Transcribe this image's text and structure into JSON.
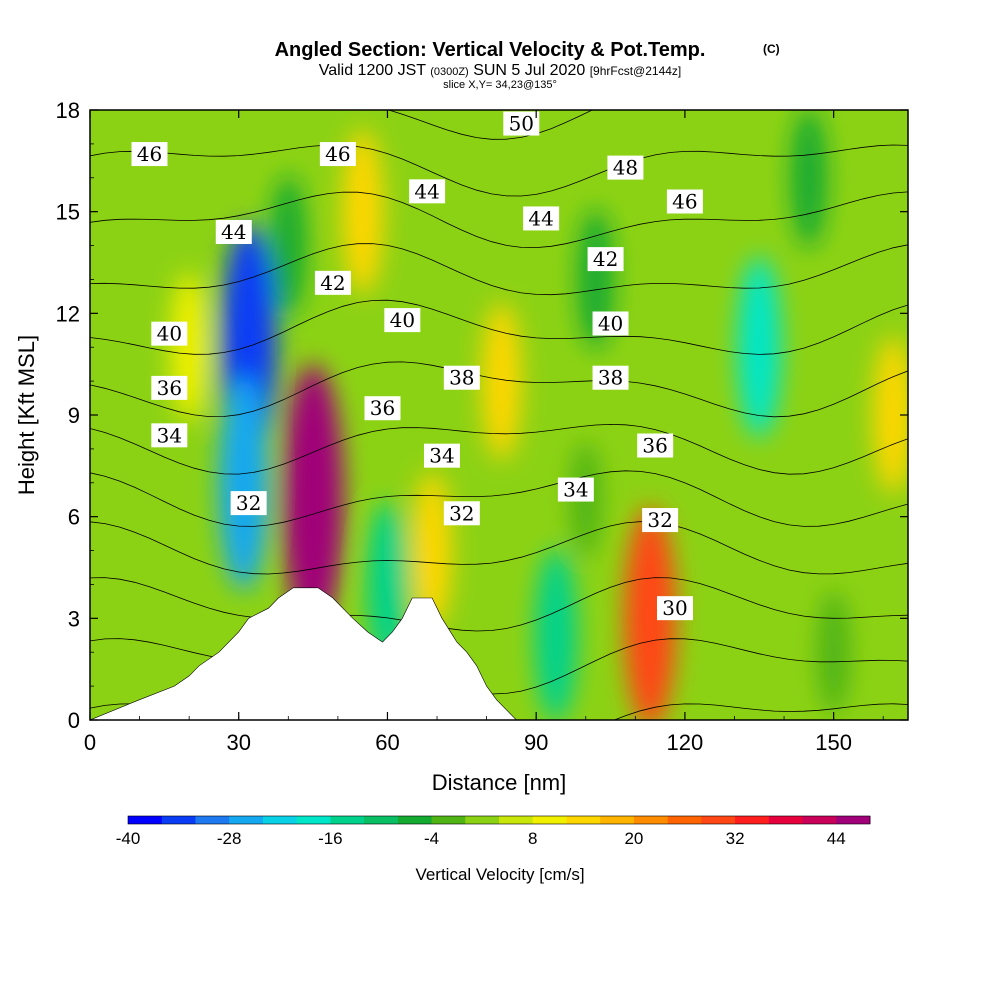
{
  "title": {
    "main": "Angled Section: Vertical Velocity & Pot.Temp.",
    "copyright": "(C)",
    "valid_prefix": "Valid 1200 JST",
    "valid_utc": "(0300Z)",
    "valid_date": "SUN 5 Jul 2020",
    "forecast": "[9hrFcst@2144z]",
    "slice": "slice X,Y= 34,23@135°"
  },
  "chart_data": {
    "type": "heatmap",
    "xlabel": "Distance [nm]",
    "ylabel": "Height [Kft MSL]",
    "xlim": [
      0,
      165
    ],
    "ylim": [
      0,
      18
    ],
    "x_ticks": [
      "0",
      "30",
      "60",
      "90",
      "120",
      "150"
    ],
    "y_ticks": [
      "0",
      "3",
      "6",
      "9",
      "12",
      "15",
      "18"
    ],
    "colorbar": {
      "label": "Vertical Velocity [cm/s]",
      "min": -40,
      "max": 48,
      "step": 4,
      "tick_labels": [
        "-40",
        "-28",
        "-16",
        "-4",
        "8",
        "20",
        "32",
        "44"
      ],
      "colors": [
        "#0000ff",
        "#0a3cf5",
        "#1e78f0",
        "#14a8f0",
        "#0ad2e6",
        "#00e6c8",
        "#00d28c",
        "#0abe64",
        "#14aa32",
        "#50b414",
        "#8cd214",
        "#c8e60a",
        "#f0f000",
        "#ffd700",
        "#ffb400",
        "#ff8c00",
        "#ff6400",
        "#ff4614",
        "#ff1e1e",
        "#e6003c",
        "#c8005a",
        "#a00078"
      ]
    },
    "velocity_features": [
      {
        "x": 20,
        "y": 11,
        "value": 10
      },
      {
        "x": 32,
        "y": 11,
        "value": -34
      },
      {
        "x": 31,
        "y": 7,
        "value": -26
      },
      {
        "x": 45,
        "y": 6.5,
        "value": 46
      },
      {
        "x": 40,
        "y": 14,
        "value": -8
      },
      {
        "x": 55,
        "y": 15,
        "value": 14
      },
      {
        "x": 60,
        "y": 4,
        "value": -14
      },
      {
        "x": 69,
        "y": 5,
        "value": 12
      },
      {
        "x": 83,
        "y": 10,
        "value": 12
      },
      {
        "x": 94,
        "y": 2.5,
        "value": -16
      },
      {
        "x": 100,
        "y": 6.5,
        "value": -2
      },
      {
        "x": 113,
        "y": 3,
        "value": 28
      },
      {
        "x": 102,
        "y": 13,
        "value": -8
      },
      {
        "x": 135,
        "y": 11,
        "value": -18
      },
      {
        "x": 145,
        "y": 16,
        "value": -8
      },
      {
        "x": 162,
        "y": 9,
        "value": 12
      },
      {
        "x": 150,
        "y": 2,
        "value": -4
      }
    ],
    "theta_labels": [
      {
        "text": "46",
        "x": 12,
        "y": 16.7
      },
      {
        "text": "46",
        "x": 50,
        "y": 16.7
      },
      {
        "text": "50",
        "x": 87,
        "y": 17.6
      },
      {
        "text": "48",
        "x": 108,
        "y": 16.3
      },
      {
        "text": "44",
        "x": 68,
        "y": 15.6
      },
      {
        "text": "46",
        "x": 120,
        "y": 15.3
      },
      {
        "text": "44",
        "x": 29,
        "y": 14.4
      },
      {
        "text": "44",
        "x": 91,
        "y": 14.8
      },
      {
        "text": "42",
        "x": 104,
        "y": 13.6
      },
      {
        "text": "42",
        "x": 49,
        "y": 12.9
      },
      {
        "text": "40",
        "x": 16,
        "y": 11.4
      },
      {
        "text": "40",
        "x": 63,
        "y": 11.8
      },
      {
        "text": "40",
        "x": 105,
        "y": 11.7
      },
      {
        "text": "36",
        "x": 16,
        "y": 9.8
      },
      {
        "text": "38",
        "x": 75,
        "y": 10.1
      },
      {
        "text": "38",
        "x": 105,
        "y": 10.1
      },
      {
        "text": "36",
        "x": 59,
        "y": 9.2
      },
      {
        "text": "34",
        "x": 16,
        "y": 8.4
      },
      {
        "text": "36",
        "x": 114,
        "y": 8.1
      },
      {
        "text": "34",
        "x": 71,
        "y": 7.8
      },
      {
        "text": "34",
        "x": 98,
        "y": 6.8
      },
      {
        "text": "32",
        "x": 32,
        "y": 6.4
      },
      {
        "text": "32",
        "x": 75,
        "y": 6.1
      },
      {
        "text": "32",
        "x": 115,
        "y": 5.9
      },
      {
        "text": "30",
        "x": 118,
        "y": 3.3
      }
    ],
    "terrain": [
      [
        10,
        0.6
      ],
      [
        17,
        1
      ],
      [
        20,
        1.3
      ],
      [
        22,
        1.6
      ],
      [
        26,
        2
      ],
      [
        28,
        2.3
      ],
      [
        30,
        2.6
      ],
      [
        32,
        3
      ],
      [
        36,
        3.3
      ],
      [
        38,
        3.6
      ],
      [
        41,
        3.9
      ],
      [
        46,
        3.9
      ],
      [
        49,
        3.6
      ],
      [
        51,
        3.3
      ],
      [
        53,
        3
      ],
      [
        56,
        2.6
      ],
      [
        59,
        2.3
      ],
      [
        61,
        2.6
      ],
      [
        63,
        3
      ],
      [
        65,
        3.6
      ],
      [
        69,
        3.6
      ],
      [
        71,
        3
      ],
      [
        74,
        2.3
      ],
      [
        76,
        2
      ],
      [
        78,
        1.6
      ],
      [
        80,
        1
      ],
      [
        82,
        0.6
      ],
      [
        84,
        0.3
      ],
      [
        86,
        0
      ]
    ]
  }
}
